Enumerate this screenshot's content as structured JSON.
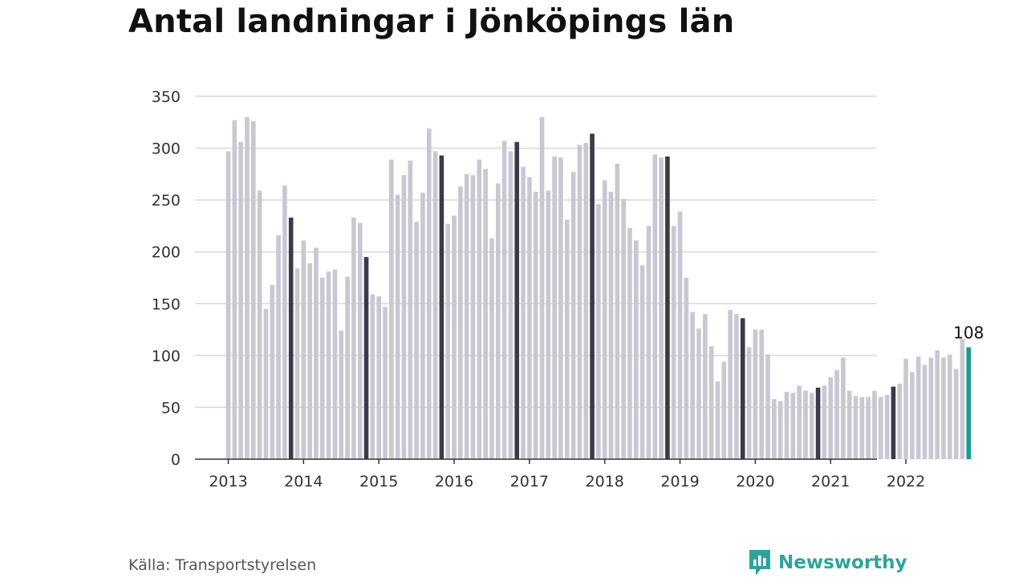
{
  "title": "Antal landningar i Jönköpings län",
  "source": "Källa: Transportstyrelsen",
  "brand": {
    "name": "Newsworthy",
    "color": "#2fa39a"
  },
  "colors": {
    "regular": "#c8c8d2",
    "december": "#3a3a4a",
    "latest": "#159b8f",
    "grid": "#d8d8de",
    "axis": "#333333"
  },
  "chart_data": {
    "type": "bar",
    "title": "Antal landningar i Jönköpings län",
    "xlabel": "",
    "ylabel": "",
    "ylim": [
      0,
      350
    ],
    "yticks": [
      0,
      50,
      100,
      150,
      200,
      250,
      300,
      350
    ],
    "xtick_labels": [
      "2013",
      "2014",
      "2015",
      "2016",
      "2017",
      "2018",
      "2019",
      "2020",
      "2021",
      "2022"
    ],
    "start": "2013-01",
    "highlight": "december",
    "latest_label": "108",
    "values": [
      297,
      327,
      306,
      330,
      326,
      259,
      145,
      168,
      216,
      264,
      233,
      184,
      211,
      189,
      204,
      175,
      181,
      183,
      124,
      176,
      233,
      228,
      195,
      159,
      157,
      147,
      289,
      255,
      274,
      288,
      229,
      257,
      319,
      297,
      293,
      227,
      235,
      263,
      275,
      274,
      289,
      280,
      213,
      266,
      307,
      297,
      306,
      282,
      272,
      258,
      330,
      259,
      292,
      291,
      231,
      277,
      303,
      305,
      314,
      246,
      269,
      258,
      285,
      251,
      223,
      211,
      187,
      225,
      294,
      291,
      292,
      225,
      239,
      175,
      142,
      126,
      140,
      109,
      75,
      94,
      144,
      140,
      136,
      108,
      125,
      125,
      101,
      58,
      56,
      65,
      64,
      71,
      66,
      64,
      69,
      71,
      79,
      86,
      98,
      66,
      61,
      60,
      60,
      66,
      60,
      62,
      70,
      73,
      97,
      84,
      99,
      91,
      98,
      105,
      98,
      101,
      87,
      116,
      108
    ]
  }
}
